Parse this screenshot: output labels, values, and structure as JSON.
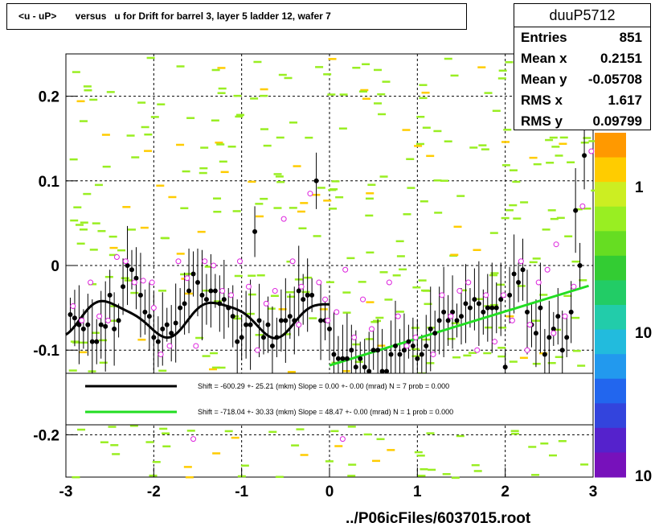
{
  "title": "<u - uP>       versus   u for Drift for barrel 3, layer 5 ladder 12, wafer 7",
  "stats": {
    "name": "duuP5712",
    "rows": [
      {
        "label": "Entries",
        "value": "851"
      },
      {
        "label": "Mean x",
        "value": "0.2151"
      },
      {
        "label": "Mean y",
        "value": "-0.05708"
      },
      {
        "label": "RMS x",
        "value": "1.617"
      },
      {
        "label": "RMS y",
        "value": "0.09799"
      }
    ]
  },
  "footer": "../P06icFiles/6037015.root",
  "chart_data": {
    "type": "scatter",
    "xlim": [
      -3,
      3
    ],
    "ylim": [
      -0.25,
      0.25
    ],
    "x_ticks": [
      -3,
      -2,
      -1,
      0,
      1,
      2,
      3
    ],
    "y_ticks": [
      -0.2,
      -0.1,
      0,
      0.1,
      0.2
    ],
    "grid": true,
    "colz_ticks": [
      "1",
      "10",
      "10"
    ],
    "colors": {
      "heat": "#99ee22",
      "black_points": "#000000",
      "pink_points": "#dd22dd",
      "fit_black": "#000000",
      "fit_green": "#22dd22"
    },
    "legend": [
      {
        "color": "#000000",
        "text": "Shift =  -600.29 +- 25.21 (mkm) Slope =     0.00 +- 0.00 (mrad)  N = 7 prob = 0.000"
      },
      {
        "color": "#22dd22",
        "text": "Shift =  -718.04 +- 30.33 (mkm) Slope =    48.47 +- 0.00 (mrad)  N = 1 prob = 0.000"
      }
    ],
    "black_points": [
      [
        -2.95,
        -0.058
      ],
      [
        -2.9,
        -0.062
      ],
      [
        -2.85,
        -0.07
      ],
      [
        -2.8,
        -0.075
      ],
      [
        -2.75,
        -0.07
      ],
      [
        -2.7,
        -0.09
      ],
      [
        -2.65,
        -0.09
      ],
      [
        -2.6,
        -0.07
      ],
      [
        -2.55,
        -0.072
      ],
      [
        -2.5,
        -0.035
      ],
      [
        -2.45,
        -0.075
      ],
      [
        -2.4,
        -0.065
      ],
      [
        -2.35,
        -0.025
      ],
      [
        -2.3,
        0.0
      ],
      [
        -2.25,
        -0.005
      ],
      [
        -2.2,
        -0.015
      ],
      [
        -2.15,
        -0.035
      ],
      [
        -2.1,
        -0.055
      ],
      [
        -2.05,
        -0.06
      ],
      [
        -2.0,
        -0.085
      ],
      [
        -1.95,
        -0.09
      ],
      [
        -1.9,
        -0.075
      ],
      [
        -1.85,
        -0.07
      ],
      [
        -1.8,
        -0.08
      ],
      [
        -1.75,
        -0.068
      ],
      [
        -1.7,
        -0.05
      ],
      [
        -1.65,
        -0.045
      ],
      [
        -1.6,
        -0.03
      ],
      [
        -1.55,
        -0.01
      ],
      [
        -1.5,
        -0.02
      ],
      [
        -1.45,
        -0.035
      ],
      [
        -1.4,
        -0.04
      ],
      [
        -1.35,
        -0.03
      ],
      [
        -1.3,
        -0.03
      ],
      [
        -1.25,
        -0.045
      ],
      [
        -1.2,
        -0.04
      ],
      [
        -1.15,
        -0.05
      ],
      [
        -1.1,
        -0.06
      ],
      [
        -1.05,
        -0.09
      ],
      [
        -1.0,
        -0.085
      ],
      [
        -0.95,
        -0.07
      ],
      [
        -0.9,
        -0.07
      ],
      [
        -0.85,
        0.04
      ],
      [
        -0.8,
        -0.065
      ],
      [
        -0.75,
        -0.085
      ],
      [
        -0.7,
        -0.07
      ],
      [
        -0.65,
        -0.095
      ],
      [
        -0.6,
        -0.085
      ],
      [
        -0.55,
        -0.065
      ],
      [
        -0.5,
        -0.065
      ],
      [
        -0.45,
        -0.06
      ],
      [
        -0.4,
        -0.065
      ],
      [
        -0.35,
        -0.03
      ],
      [
        -0.3,
        -0.04
      ],
      [
        -0.25,
        -0.035
      ],
      [
        -0.2,
        -0.035
      ],
      [
        -0.15,
        0.1
      ],
      [
        -0.1,
        -0.065
      ],
      [
        -0.05,
        -0.065
      ],
      [
        0.0,
        -0.075
      ],
      [
        0.05,
        -0.105
      ],
      [
        0.1,
        -0.11
      ],
      [
        0.15,
        -0.11
      ],
      [
        0.2,
        -0.11
      ],
      [
        0.25,
        -0.1
      ],
      [
        0.3,
        -0.12
      ],
      [
        0.35,
        -0.11
      ],
      [
        0.4,
        -0.12
      ],
      [
        0.45,
        -0.125
      ],
      [
        0.5,
        -0.1
      ],
      [
        0.55,
        -0.1
      ],
      [
        0.6,
        -0.125
      ],
      [
        0.65,
        -0.125
      ],
      [
        0.7,
        -0.105
      ],
      [
        0.75,
        -0.095
      ],
      [
        0.8,
        -0.105
      ],
      [
        0.85,
        -0.1
      ],
      [
        0.9,
        -0.09
      ],
      [
        0.95,
        -0.095
      ],
      [
        1.0,
        -0.11
      ],
      [
        1.05,
        -0.105
      ],
      [
        1.1,
        -0.095
      ],
      [
        1.15,
        -0.075
      ],
      [
        1.2,
        -0.08
      ],
      [
        1.25,
        -0.065
      ],
      [
        1.3,
        -0.055
      ],
      [
        1.35,
        -0.065
      ],
      [
        1.4,
        -0.055
      ],
      [
        1.45,
        -0.065
      ],
      [
        1.5,
        -0.06
      ],
      [
        1.55,
        -0.045
      ],
      [
        1.6,
        -0.05
      ],
      [
        1.65,
        -0.04
      ],
      [
        1.7,
        -0.045
      ],
      [
        1.75,
        -0.055
      ],
      [
        1.8,
        -0.05
      ],
      [
        1.85,
        -0.05
      ],
      [
        1.9,
        -0.05
      ],
      [
        1.95,
        -0.04
      ],
      [
        2.0,
        -0.12
      ],
      [
        2.05,
        -0.035
      ],
      [
        2.1,
        -0.01
      ],
      [
        2.15,
        -0.02
      ],
      [
        2.2,
        -0.005
      ],
      [
        2.25,
        -0.055
      ],
      [
        2.3,
        -0.07
      ],
      [
        2.35,
        -0.08
      ],
      [
        2.4,
        -0.05
      ],
      [
        2.45,
        -0.105
      ],
      [
        2.5,
        -0.085
      ],
      [
        2.55,
        -0.075
      ],
      [
        2.6,
        -0.06
      ],
      [
        2.65,
        -0.1
      ],
      [
        2.7,
        -0.085
      ],
      [
        2.75,
        -0.055
      ],
      [
        2.8,
        0.065
      ],
      [
        2.85,
        0.0
      ],
      [
        2.9,
        0.13
      ]
    ],
    "pink_points": [
      [
        -2.92,
        -0.048
      ],
      [
        -2.82,
        -0.065
      ],
      [
        -2.72,
        -0.02
      ],
      [
        -2.62,
        -0.06
      ],
      [
        -2.52,
        -0.065
      ],
      [
        -2.42,
        0.01
      ],
      [
        -2.32,
        0.005
      ],
      [
        -2.22,
        -0.02
      ],
      [
        -2.12,
        -0.018
      ],
      [
        -2.02,
        -0.02
      ],
      [
        -1.92,
        -0.105
      ],
      [
        -1.82,
        -0.095
      ],
      [
        -1.72,
        0.005
      ],
      [
        -1.62,
        -0.015
      ],
      [
        -1.52,
        -0.095
      ],
      [
        -1.42,
        0.005
      ],
      [
        -1.32,
        0.0
      ],
      [
        -1.22,
        -0.03
      ],
      [
        -1.12,
        -0.035
      ],
      [
        -1.02,
        0.005
      ],
      [
        -0.92,
        -0.025
      ],
      [
        -0.82,
        -0.1
      ],
      [
        -0.72,
        -0.045
      ],
      [
        -0.62,
        -0.03
      ],
      [
        -0.52,
        0.055
      ],
      [
        -0.42,
        0.005
      ],
      [
        -0.32,
        -0.025
      ],
      [
        -0.22,
        0.085
      ],
      [
        -0.12,
        -0.02
      ],
      [
        -0.02,
        -0.065
      ],
      [
        0.08,
        -0.055
      ],
      [
        0.18,
        -0.005
      ],
      [
        0.28,
        -0.085
      ],
      [
        0.38,
        -0.04
      ],
      [
        0.48,
        -0.075
      ],
      [
        0.68,
        -0.02
      ],
      [
        0.78,
        -0.06
      ],
      [
        0.88,
        -0.095
      ],
      [
        0.98,
        -0.085
      ],
      [
        1.18,
        -0.105
      ],
      [
        1.28,
        -0.035
      ],
      [
        1.38,
        -0.06
      ],
      [
        1.48,
        -0.03
      ],
      [
        1.58,
        -0.02
      ],
      [
        1.68,
        -0.1
      ],
      [
        1.78,
        -0.035
      ],
      [
        1.88,
        -0.09
      ],
      [
        1.98,
        -0.035
      ],
      [
        2.08,
        -0.065
      ],
      [
        2.18,
        0.005
      ],
      [
        2.28,
        -0.07
      ],
      [
        2.38,
        -0.02
      ],
      [
        2.48,
        -0.005
      ],
      [
        2.58,
        0.025
      ],
      [
        2.68,
        -0.06
      ],
      [
        2.78,
        -0.025
      ],
      [
        2.88,
        0.07
      ],
      [
        2.98,
        0.135
      ],
      [
        -1.55,
        -0.205
      ],
      [
        0.15,
        -0.205
      ],
      [
        -0.05,
        -0.04
      ],
      [
        2.55,
        -0.08
      ],
      [
        -2.0,
        -0.05
      ],
      [
        1.05,
        -0.13
      ],
      [
        2.25,
        -0.1
      ],
      [
        -0.35,
        -0.07
      ]
    ],
    "fit_black": {
      "x_range": [
        -3,
        0
      ]
    },
    "fit_green": {
      "x": [
        0.0,
        2.95
      ],
      "y": [
        -0.118,
        -0.024
      ]
    }
  }
}
